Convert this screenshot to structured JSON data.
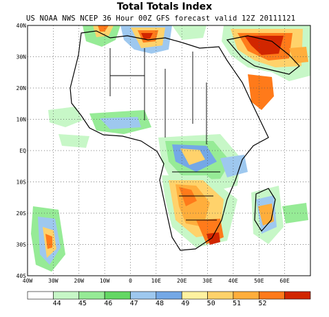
{
  "title": "Total Totals Index",
  "subtitle": "US NOAA NWS NCEP 36 Hour 00Z GFS forecast valid 12Z 20111121",
  "lat_ticks": [
    "40N",
    "30N",
    "20N",
    "10N",
    "EQ",
    "10S",
    "20S",
    "30S",
    "40S"
  ],
  "lon_ticks": [
    "40W",
    "30W",
    "20W",
    "10W",
    "0",
    "10E",
    "20E",
    "30E",
    "40E",
    "50E",
    "60E"
  ],
  "colorbar": {
    "labels": [
      "44",
      "45",
      "46",
      "47",
      "48",
      "49",
      "50",
      "51",
      "52"
    ],
    "colors": [
      "#ffffff",
      "#c7f7c7",
      "#96eb96",
      "#64d764",
      "#9ec8ef",
      "#74a8e6",
      "#fff2a0",
      "#ffd26b",
      "#ffae3c",
      "#ff7a1a",
      "#d12600"
    ]
  }
}
